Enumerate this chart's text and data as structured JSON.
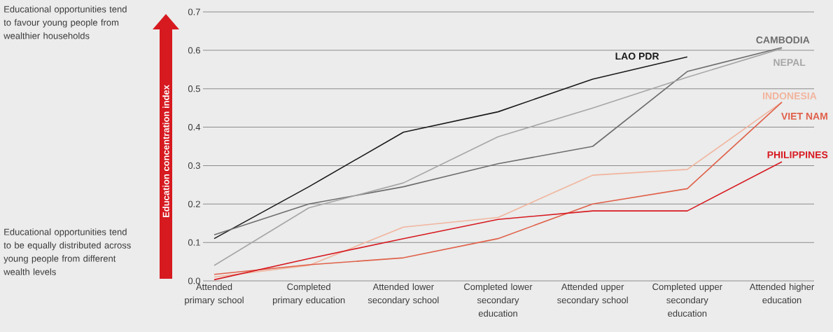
{
  "chart_data": {
    "type": "line",
    "ylabel": "Education concentration index",
    "annotations": [
      "Educational opportunities tend to favour young people from wealthier households",
      "Educational opportunities tend to be equally distributed across young people from different wealth levels"
    ],
    "categories": [
      "Attended primary school",
      "Completed primary education",
      "Attended lower secondary school",
      "Completed lower secondary education",
      "Attended upper secondary school",
      "Completed upper secondary education",
      "Attended higher education"
    ],
    "series": [
      {
        "name": "LAO PDR",
        "color": "#1a1a1a",
        "values": [
          0.11,
          0.245,
          0.387,
          0.44,
          0.525,
          0.583,
          null
        ]
      },
      {
        "name": "CAMBODIA",
        "color": "#6d6d6d",
        "values": [
          0.12,
          0.2,
          0.245,
          0.305,
          0.35,
          0.545,
          0.607
        ]
      },
      {
        "name": "NEPAL",
        "color": "#a6a6a6",
        "values": [
          0.04,
          0.19,
          0.255,
          0.375,
          0.45,
          0.53,
          0.605
        ]
      },
      {
        "name": "INDONESIA",
        "color": "#f2b49e",
        "values": [
          0.01,
          0.04,
          0.14,
          0.165,
          0.275,
          0.29,
          0.465
        ]
      },
      {
        "name": "VIET NAM",
        "color": "#e0604a",
        "values": [
          0.017,
          0.042,
          0.06,
          0.11,
          0.2,
          0.24,
          0.465
        ]
      },
      {
        "name": "PHILIPPINES",
        "color": "#d71920",
        "values": [
          0.003,
          0.058,
          0.11,
          0.16,
          0.182,
          0.182,
          0.31
        ]
      }
    ],
    "ylim": [
      0,
      0.7
    ],
    "yticks": [
      {
        "value": 0,
        "label": "0.0"
      },
      0.1,
      0.2,
      0.3,
      0.4,
      0.5,
      0.6,
      0.7
    ],
    "grid": "y",
    "marker": "none"
  }
}
